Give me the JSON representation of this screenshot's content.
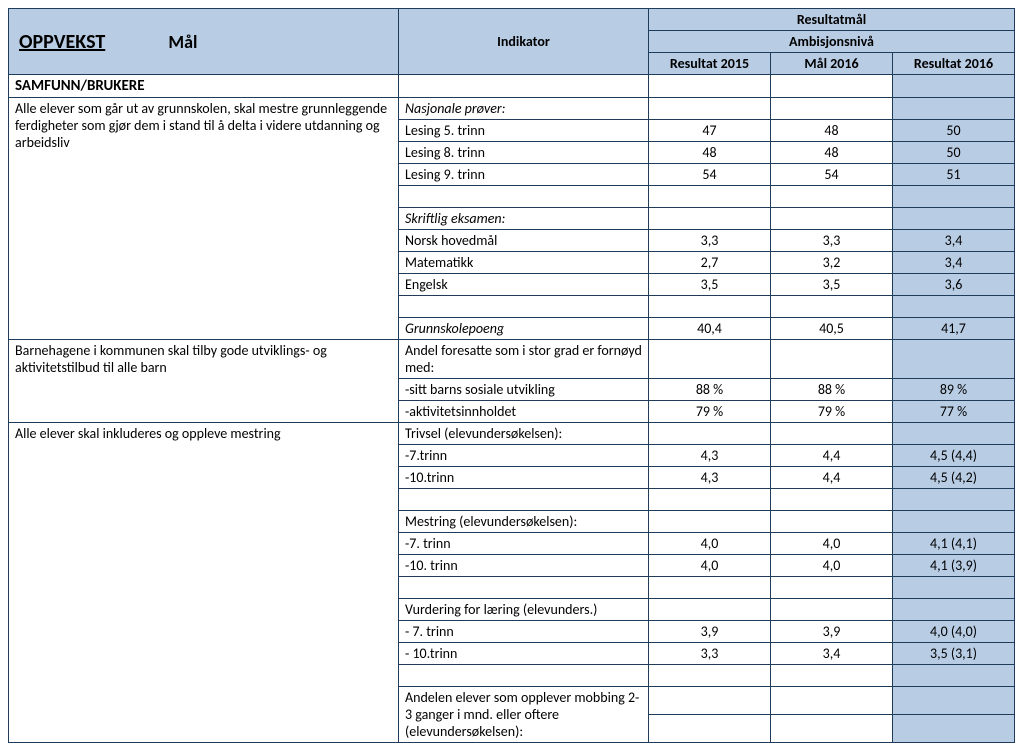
{
  "colors": {
    "header_bg": "#b8cce4",
    "border": "#1f3c5a",
    "page_bg": "#ffffff",
    "text": "#000000"
  },
  "header": {
    "title_main": "OPPVEKST",
    "title_sub": "Mål",
    "indikator": "Indikator",
    "resultatmal": "Resultatmål",
    "ambisjonsniva": "Ambisjonsnivå",
    "col_r1": "Resultat 2015",
    "col_r2": "Mål 2016",
    "col_r3": "Resultat 2016"
  },
  "section": "SAMFUNN/BRUKERE",
  "rows": {
    "g1": {
      "goal": "Alle elever som går ut av grunnskolen, skal mestre grunnleggende ferdigheter som gjør dem i stand til å delta i videre utdanning og arbeidsliv",
      "ind_nasj": "Nasjonale prøver:",
      "l5": {
        "label": "Lesing 5. trinn",
        "r1": "47",
        "r2": "48",
        "r3": "50"
      },
      "l8": {
        "label": "Lesing 8. trinn",
        "r1": "48",
        "r2": "48",
        "r3": "50"
      },
      "l9": {
        "label": "Lesing 9. trinn",
        "r1": "54",
        "r2": "54",
        "r3": "51"
      },
      "ind_eks": "Skriftlig eksamen:",
      "nor": {
        "label": "Norsk hovedmål",
        "r1": "3,3",
        "r2": "3,3",
        "r3": "3,4"
      },
      "mat": {
        "label": "Matematikk",
        "r1": "2,7",
        "r2": "3,2",
        "r3": "3,4"
      },
      "eng": {
        "label": "Engelsk",
        "r1": "3,5",
        "r2": "3,5",
        "r3": "3,6"
      },
      "gsp": {
        "label": "Grunnskolepoeng",
        "r1": "40,4",
        "r2": "40,5",
        "r3": "41,7"
      }
    },
    "g2": {
      "goal": "Barnehagene i kommunen skal tilby gode utviklings- og aktivitetstilbud til alle barn",
      "ind_head": "Andel foresatte som i stor grad er fornøyd med:",
      "sos": {
        "label": "-sitt barns sosiale utvikling",
        "r1": "88 %",
        "r2": "88 %",
        "r3": "89 %"
      },
      "akt": {
        "label": "-aktivitetsinnholdet",
        "r1": "79 %",
        "r2": "79 %",
        "r3": "77 %"
      }
    },
    "g3": {
      "goal": "Alle elever skal inkluderes og oppleve mestring",
      "triv_head": "Trivsel (elevundersøkelsen):",
      "t7": {
        "label": "-7.trinn",
        "r1": "4,3",
        "r2": "4,4",
        "r3": "4,5 (4,4)"
      },
      "t10": {
        "label": "-10.trinn",
        "r1": "4,3",
        "r2": "4,4",
        "r3": "4,5 (4,2)"
      },
      "mest_head": "Mestring (elevundersøkelsen):",
      "m7": {
        "label": "-7. trinn",
        "r1": "4,0",
        "r2": "4,0",
        "r3": "4,1 (4,1)"
      },
      "m10": {
        "label": "-10. trinn",
        "r1": "4,0",
        "r2": "4,0",
        "r3": "4,1 (3,9)"
      },
      "vurd_head": "Vurdering for læring (elevunders.)",
      "v7": {
        "label": "- 7. trinn",
        "r1": "3,9",
        "r2": "3,9",
        "r3": "4,0 (4,0)"
      },
      "v10": {
        "label": "- 10.trinn",
        "r1": "3,3",
        "r2": "3,4",
        "r3": "3,5 (3,1)"
      },
      "mob_head": "Andelen elever som opplever mobbing 2-3 ganger i mnd. eller oftere (elevundersøkelsen):"
    }
  }
}
